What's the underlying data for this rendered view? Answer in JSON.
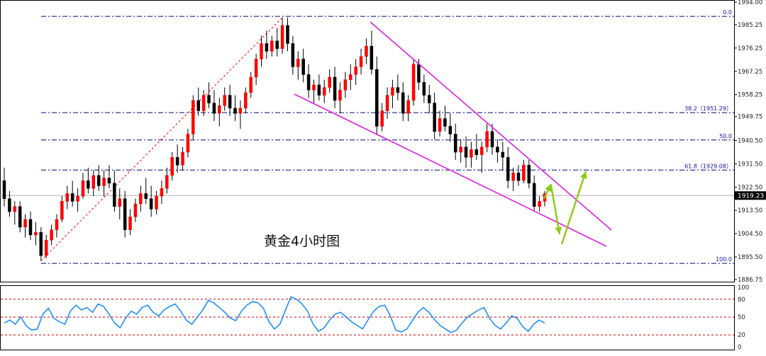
{
  "chart_data": {
    "type": "candlestick",
    "title": "黄金4小时图",
    "price_panel": {
      "ylim": [
        1886.75,
        1994.0
      ],
      "y_tick_labels": [
        "1994.00",
        "1985.25",
        "1976.25",
        "1967.25",
        "1958.25",
        "1949.75",
        "1940.50",
        "1931.50",
        "1922.50",
        "1913.50",
        "1904.50",
        "1895.50",
        "1886.75"
      ],
      "current_price": "1919.23",
      "colors": {
        "up": "#008000",
        "down": "#000000",
        "wick": "#000000",
        "body_up": "#ff0000",
        "body_down": "#000000"
      },
      "candles_ohlc": [
        [
          1925,
          1930,
          1915,
          1918
        ],
        [
          1918,
          1921,
          1911,
          1913
        ],
        [
          1913,
          1917,
          1908,
          1915
        ],
        [
          1915,
          1917,
          1905,
          1907
        ],
        [
          1907,
          1912,
          1903,
          1910
        ],
        [
          1910,
          1913,
          1902,
          1904
        ],
        [
          1904,
          1909,
          1900,
          1905
        ],
        [
          1905,
          1907,
          1894,
          1896
        ],
        [
          1896,
          1904,
          1895,
          1902
        ],
        [
          1902,
          1908,
          1900,
          1906
        ],
        [
          1906,
          1912,
          1903,
          1910
        ],
        [
          1910,
          1919,
          1909,
          1917
        ],
        [
          1917,
          1923,
          1914,
          1920
        ],
        [
          1920,
          1925,
          1915,
          1917
        ],
        [
          1917,
          1922,
          1913,
          1919
        ],
        [
          1919,
          1928,
          1918,
          1925
        ],
        [
          1925,
          1930,
          1920,
          1922
        ],
        [
          1922,
          1929,
          1919,
          1927
        ],
        [
          1927,
          1931,
          1921,
          1923
        ],
        [
          1923,
          1929,
          1919,
          1926
        ],
        [
          1926,
          1931,
          1922,
          1924
        ],
        [
          1924,
          1929,
          1913,
          1915
        ],
        [
          1915,
          1922,
          1910,
          1918
        ],
        [
          1918,
          1921,
          1903,
          1906
        ],
        [
          1906,
          1914,
          1904,
          1911
        ],
        [
          1911,
          1918,
          1909,
          1916
        ],
        [
          1916,
          1923,
          1913,
          1920
        ],
        [
          1920,
          1926,
          1916,
          1918
        ],
        [
          1918,
          1923,
          1911,
          1914
        ],
        [
          1914,
          1921,
          1912,
          1919
        ],
        [
          1919,
          1925,
          1916,
          1922
        ],
        [
          1922,
          1930,
          1920,
          1927
        ],
        [
          1927,
          1936,
          1925,
          1934
        ],
        [
          1934,
          1939,
          1928,
          1931
        ],
        [
          1931,
          1938,
          1929,
          1936
        ],
        [
          1936,
          1945,
          1934,
          1943
        ],
        [
          1943,
          1958,
          1941,
          1956
        ],
        [
          1956,
          1961,
          1950,
          1952
        ],
        [
          1952,
          1960,
          1950,
          1958
        ],
        [
          1958,
          1963,
          1953,
          1955
        ],
        [
          1955,
          1960,
          1948,
          1951
        ],
        [
          1951,
          1957,
          1946,
          1954
        ],
        [
          1954,
          1961,
          1952,
          1958
        ],
        [
          1958,
          1962,
          1950,
          1953
        ],
        [
          1953,
          1958,
          1948,
          1951
        ],
        [
          1951,
          1956,
          1945,
          1953
        ],
        [
          1953,
          1961,
          1951,
          1959
        ],
        [
          1959,
          1967,
          1957,
          1965
        ],
        [
          1965,
          1974,
          1962,
          1972
        ],
        [
          1972,
          1981,
          1969,
          1978
        ],
        [
          1978,
          1983,
          1972,
          1975
        ],
        [
          1975,
          1981,
          1973,
          1979
        ],
        [
          1979,
          1984,
          1973,
          1976
        ],
        [
          1976,
          1988,
          1974,
          1985
        ],
        [
          1985,
          1988,
          1975,
          1978
        ],
        [
          1978,
          1981,
          1966,
          1969
        ],
        [
          1969,
          1975,
          1964,
          1972
        ],
        [
          1972,
          1976,
          1963,
          1966
        ],
        [
          1966,
          1970,
          1957,
          1960
        ],
        [
          1960,
          1964,
          1955,
          1962
        ],
        [
          1962,
          1966,
          1956,
          1958
        ],
        [
          1958,
          1964,
          1955,
          1961
        ],
        [
          1961,
          1968,
          1959,
          1965
        ],
        [
          1965,
          1969,
          1953,
          1956
        ],
        [
          1956,
          1963,
          1951,
          1960
        ],
        [
          1960,
          1967,
          1957,
          1964
        ],
        [
          1964,
          1970,
          1960,
          1966
        ],
        [
          1966,
          1972,
          1962,
          1969
        ],
        [
          1969,
          1976,
          1966,
          1973
        ],
        [
          1973,
          1980,
          1970,
          1977
        ],
        [
          1977,
          1983,
          1966,
          1968
        ],
        [
          1968,
          1973,
          1943,
          1946
        ],
        [
          1946,
          1955,
          1944,
          1952
        ],
        [
          1952,
          1961,
          1949,
          1958
        ],
        [
          1958,
          1964,
          1953,
          1961
        ],
        [
          1961,
          1966,
          1956,
          1959
        ],
        [
          1959,
          1963,
          1948,
          1951
        ],
        [
          1951,
          1958,
          1948,
          1956
        ],
        [
          1956,
          1972,
          1954,
          1970
        ],
        [
          1970,
          1972,
          1960,
          1963
        ],
        [
          1963,
          1966,
          1955,
          1958
        ],
        [
          1958,
          1962,
          1951,
          1955
        ],
        [
          1955,
          1959,
          1941,
          1944
        ],
        [
          1944,
          1952,
          1942,
          1949
        ],
        [
          1949,
          1954,
          1944,
          1946
        ],
        [
          1946,
          1951,
          1940,
          1943
        ],
        [
          1943,
          1947,
          1933,
          1936
        ],
        [
          1936,
          1941,
          1932,
          1938
        ],
        [
          1938,
          1942,
          1930,
          1934
        ],
        [
          1934,
          1940,
          1930,
          1937
        ],
        [
          1937,
          1943,
          1933,
          1935
        ],
        [
          1935,
          1940,
          1928,
          1938
        ],
        [
          1938,
          1947,
          1936,
          1944
        ],
        [
          1944,
          1947,
          1935,
          1938
        ],
        [
          1938,
          1941,
          1932,
          1936
        ],
        [
          1936,
          1940,
          1929,
          1934
        ],
        [
          1934,
          1938,
          1922,
          1925
        ],
        [
          1925,
          1930,
          1921,
          1928
        ],
        [
          1928,
          1931,
          1923,
          1925
        ],
        [
          1925,
          1933,
          1924,
          1931
        ],
        [
          1931,
          1933,
          1922,
          1924
        ],
        [
          1924,
          1927,
          1913,
          1915
        ],
        [
          1915,
          1919,
          1913,
          1917
        ],
        [
          1917,
          1921,
          1915,
          1920
        ]
      ],
      "annotations": {
        "fib_levels": [
          {
            "label": "0.0",
            "price": 1988.5
          },
          {
            "label": "38.2（1951.29）",
            "price": 1951.29
          },
          {
            "label": "50.0",
            "price": 1940.7
          },
          {
            "label": "61.8（1929.08）",
            "price": 1929.08
          },
          {
            "label": "100.0",
            "price": 1893.0
          }
        ],
        "channel_color": "#e020e0",
        "fib_line_color": "#00008b",
        "rise_line_color": "#ff0000",
        "arrow_color": "#8ccc14"
      }
    },
    "indicator_panel": {
      "ylim": [
        0,
        100
      ],
      "y_tick_labels": [
        "100",
        "80",
        "50",
        "20",
        "0"
      ],
      "levels": [
        80,
        50,
        20
      ],
      "line_color": "#1e90ff",
      "level_color": "#cc0000",
      "values": [
        40,
        45,
        38,
        50,
        35,
        28,
        30,
        55,
        65,
        48,
        42,
        38,
        60,
        70,
        62,
        66,
        58,
        72,
        68,
        55,
        40,
        32,
        48,
        60,
        55,
        66,
        70,
        58,
        52,
        62,
        68,
        72,
        60,
        45,
        38,
        50,
        62,
        78,
        74,
        66,
        58,
        48,
        44,
        60,
        70,
        76,
        74,
        65,
        42,
        30,
        38,
        62,
        84,
        80,
        72,
        60,
        38,
        26,
        32,
        45,
        55,
        58,
        50,
        42,
        36,
        30,
        46,
        60,
        68,
        70,
        52,
        28,
        25,
        30,
        44,
        58,
        66,
        58,
        46,
        36,
        30,
        24,
        28,
        40,
        50,
        56,
        62,
        66,
        48,
        36,
        30,
        40,
        52,
        48,
        34,
        26,
        38,
        45,
        40
      ]
    }
  }
}
